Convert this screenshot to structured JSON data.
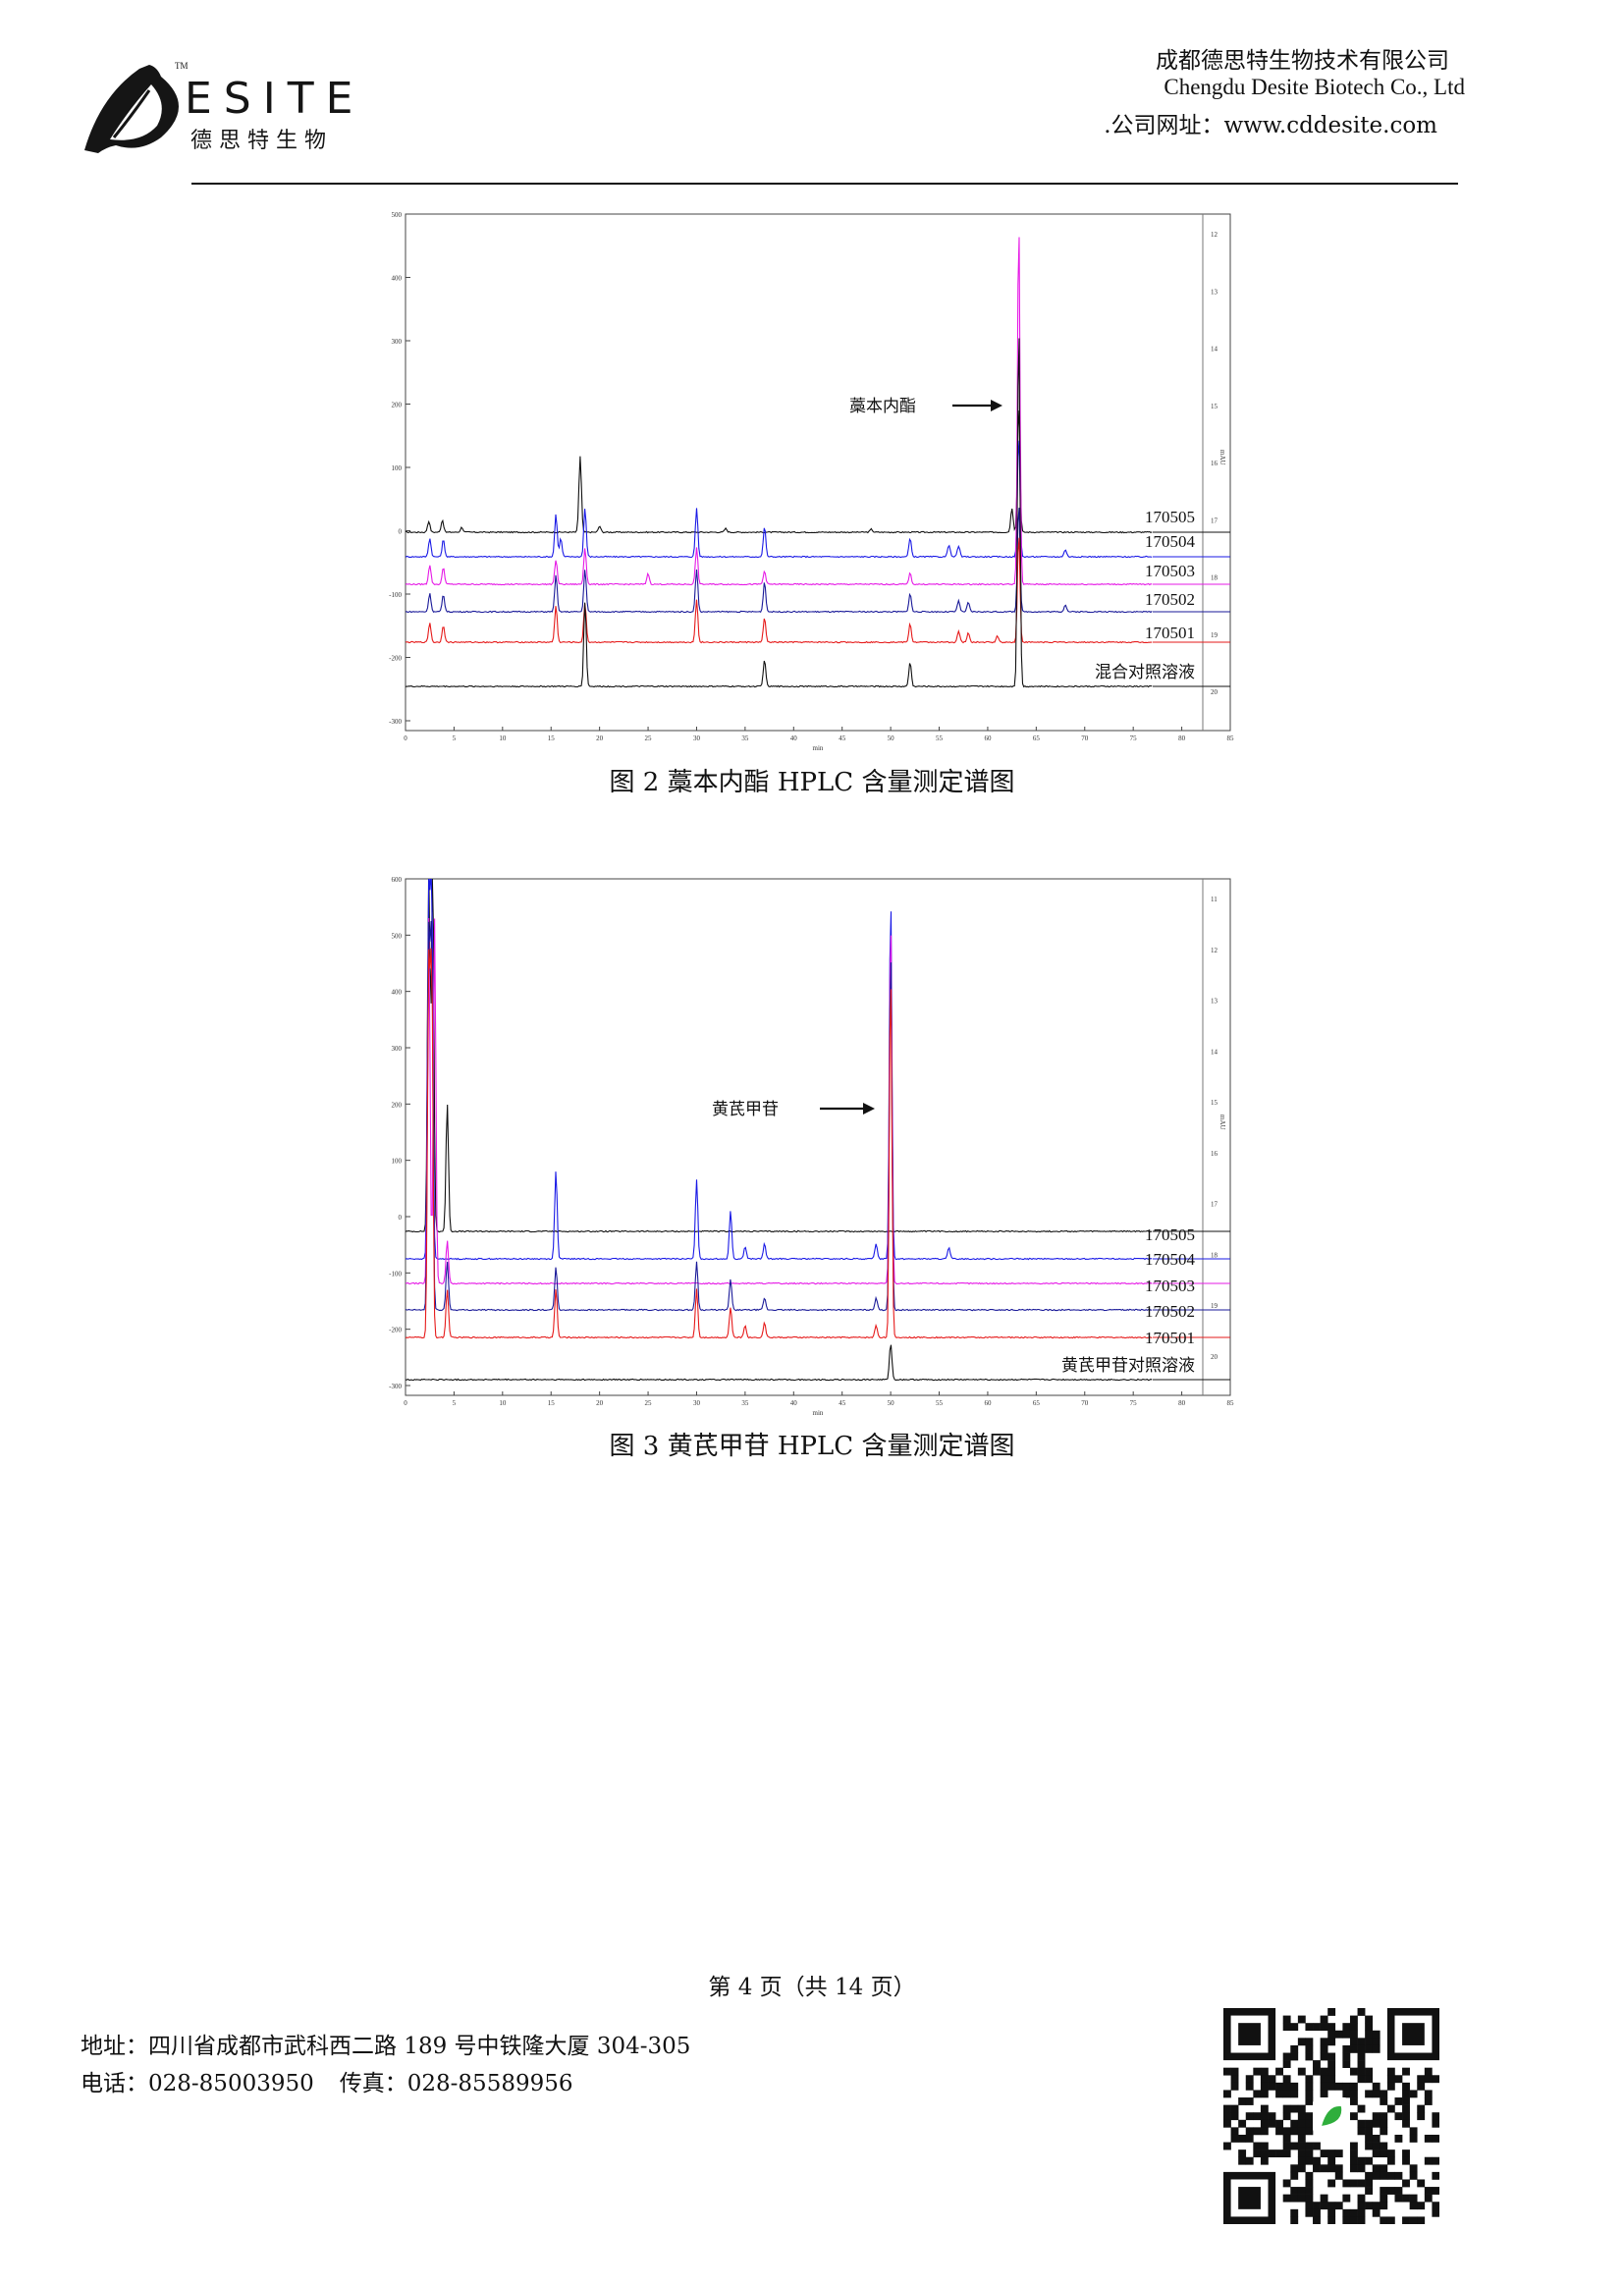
{
  "header": {
    "logo_wordmark": "ESITE",
    "logo_subtitle": "德 思 特 生 物",
    "trademark": "TM",
    "company_cn": "成都德思特生物技术有限公司",
    "company_en": "Chengdu Desite Biotech Co., Ltd",
    "website": ".公司网址：www.cddesite.com"
  },
  "chart_data": [
    {
      "type": "line",
      "title": "图 2  藁本内酯 HPLC 含量测定谱图",
      "annotation": "藁本内酯",
      "xlabel": "min",
      "x_ticks": [
        "0",
        "5",
        "10",
        "15",
        "20",
        "25",
        "30",
        "35",
        "40",
        "45",
        "50",
        "55",
        "60",
        "65",
        "70",
        "75",
        "80",
        "85"
      ],
      "xlim": [
        0,
        85
      ],
      "ylim": [
        -300,
        500
      ],
      "y_ticks": [
        "500",
        "400",
        "300",
        "200",
        "100",
        "0",
        "-100",
        "-200",
        "-300"
      ],
      "right_ticks": [
        "12",
        "13",
        "14",
        "15",
        "16",
        "17",
        "18",
        "19",
        "20"
      ],
      "right_label": "mAU",
      "series": [
        {
          "name": "170505",
          "color": "#111111",
          "peaks": [
            [
              2.4,
              18
            ],
            [
              3.8,
              20
            ],
            [
              5.8,
              8
            ],
            [
              18,
              125
            ],
            [
              20,
              10
            ],
            [
              33,
              6
            ],
            [
              48,
              5
            ],
            [
              62.5,
              40
            ],
            [
              63.2,
              210
            ]
          ]
        },
        {
          "name": "170504",
          "color": "#1a1ae6",
          "peaks": [
            [
              2.5,
              30
            ],
            [
              3.9,
              28
            ],
            [
              15.5,
              70
            ],
            [
              16,
              30
            ],
            [
              18.5,
              80
            ],
            [
              30,
              80
            ],
            [
              37,
              50
            ],
            [
              52,
              30
            ],
            [
              56,
              20
            ],
            [
              57,
              18
            ],
            [
              63.2,
              200
            ],
            [
              68,
              12
            ]
          ]
        },
        {
          "name": "170503",
          "color": "#e619e6",
          "peaks": [
            [
              2.5,
              32
            ],
            [
              3.9,
              28
            ],
            [
              15.5,
              40
            ],
            [
              18.5,
              60
            ],
            [
              25,
              18
            ],
            [
              30,
              60
            ],
            [
              37,
              22
            ],
            [
              52,
              18
            ],
            [
              63.2,
              600
            ]
          ]
        },
        {
          "name": "170502",
          "color": "#1a1a99",
          "peaks": [
            [
              2.5,
              30
            ],
            [
              3.9,
              28
            ],
            [
              15.5,
              60
            ],
            [
              18.5,
              70
            ],
            [
              30,
              70
            ],
            [
              37,
              50
            ],
            [
              52,
              30
            ],
            [
              57,
              18
            ],
            [
              58,
              15
            ],
            [
              63.2,
              180
            ],
            [
              68,
              12
            ]
          ]
        },
        {
          "name": "170501",
          "color": "#e61a1a",
          "peaks": [
            [
              2.5,
              32
            ],
            [
              3.9,
              28
            ],
            [
              15.5,
              60
            ],
            [
              18.5,
              65
            ],
            [
              30,
              70
            ],
            [
              37,
              40
            ],
            [
              52,
              30
            ],
            [
              57,
              18
            ],
            [
              58,
              15
            ],
            [
              61,
              10
            ],
            [
              63.2,
              180
            ]
          ]
        },
        {
          "name": "混合对照溶液",
          "color": "#111111",
          "peaks": [
            [
              18.5,
              140
            ],
            [
              37,
              45
            ],
            [
              52,
              40
            ],
            [
              63.2,
              600
            ]
          ]
        }
      ]
    },
    {
      "type": "line",
      "title": "图 3  黄芪甲苷 HPLC 含量测定谱图",
      "annotation": "黄芪甲苷",
      "xlabel": "min",
      "x_ticks": [
        "0",
        "5",
        "10",
        "15",
        "20",
        "25",
        "30",
        "35",
        "40",
        "45",
        "50",
        "55",
        "60",
        "65",
        "70",
        "75",
        "80",
        "85"
      ],
      "xlim": [
        0,
        85
      ],
      "ylim": [
        -300,
        600
      ],
      "y_ticks": [
        "600",
        "500",
        "400",
        "300",
        "200",
        "100",
        "0",
        "-100",
        "-200",
        "-300"
      ],
      "right_ticks": [
        "11",
        "12",
        "13",
        "14",
        "15",
        "16",
        "17",
        "18",
        "19",
        "20"
      ],
      "right_label": "mAU",
      "series": [
        {
          "name": "170505",
          "color": "#111111",
          "peaks": [
            [
              2.4,
              600
            ],
            [
              2.8,
              600
            ],
            [
              4.3,
              210
            ]
          ]
        },
        {
          "name": "170504",
          "color": "#1a1ae6",
          "peaks": [
            [
              2.4,
              600
            ],
            [
              2.7,
              600
            ],
            [
              15.5,
              145
            ],
            [
              30,
              130
            ],
            [
              33.5,
              80
            ],
            [
              35,
              20
            ],
            [
              37,
              25
            ],
            [
              48.5,
              25
            ],
            [
              50,
              600
            ],
            [
              56,
              18
            ]
          ]
        },
        {
          "name": "170503",
          "color": "#e619e6",
          "peaks": [
            [
              2.4,
              600
            ],
            [
              3.0,
              600
            ],
            [
              4.3,
              70
            ],
            [
              50,
              600
            ]
          ]
        },
        {
          "name": "170502",
          "color": "#1a1a99",
          "peaks": [
            [
              2.4,
              600
            ],
            [
              2.7,
              600
            ],
            [
              4.3,
              80
            ],
            [
              15.5,
              70
            ],
            [
              30,
              80
            ],
            [
              33.5,
              50
            ],
            [
              37,
              20
            ],
            [
              48.5,
              20
            ],
            [
              50,
              600
            ]
          ]
        },
        {
          "name": "170501",
          "color": "#e61a1a",
          "peaks": [
            [
              2.4,
              600
            ],
            [
              2.7,
              600
            ],
            [
              4.3,
              80
            ],
            [
              15.5,
              80
            ],
            [
              30,
              80
            ],
            [
              33.5,
              50
            ],
            [
              35,
              20
            ],
            [
              37,
              25
            ],
            [
              48.5,
              20
            ],
            [
              50,
              600
            ]
          ]
        },
        {
          "name": "黄芪甲苷对照溶液",
          "color": "#111111",
          "peaks": [
            [
              50,
              60
            ]
          ]
        }
      ]
    }
  ],
  "page_number": "第 4 页（共 14 页）",
  "footer": {
    "address": "地址：四川省成都市武科西二路 189 号中铁隆大厦 304-305",
    "phone": "电话：028-85003950",
    "fax": "传真：028-85589956"
  }
}
